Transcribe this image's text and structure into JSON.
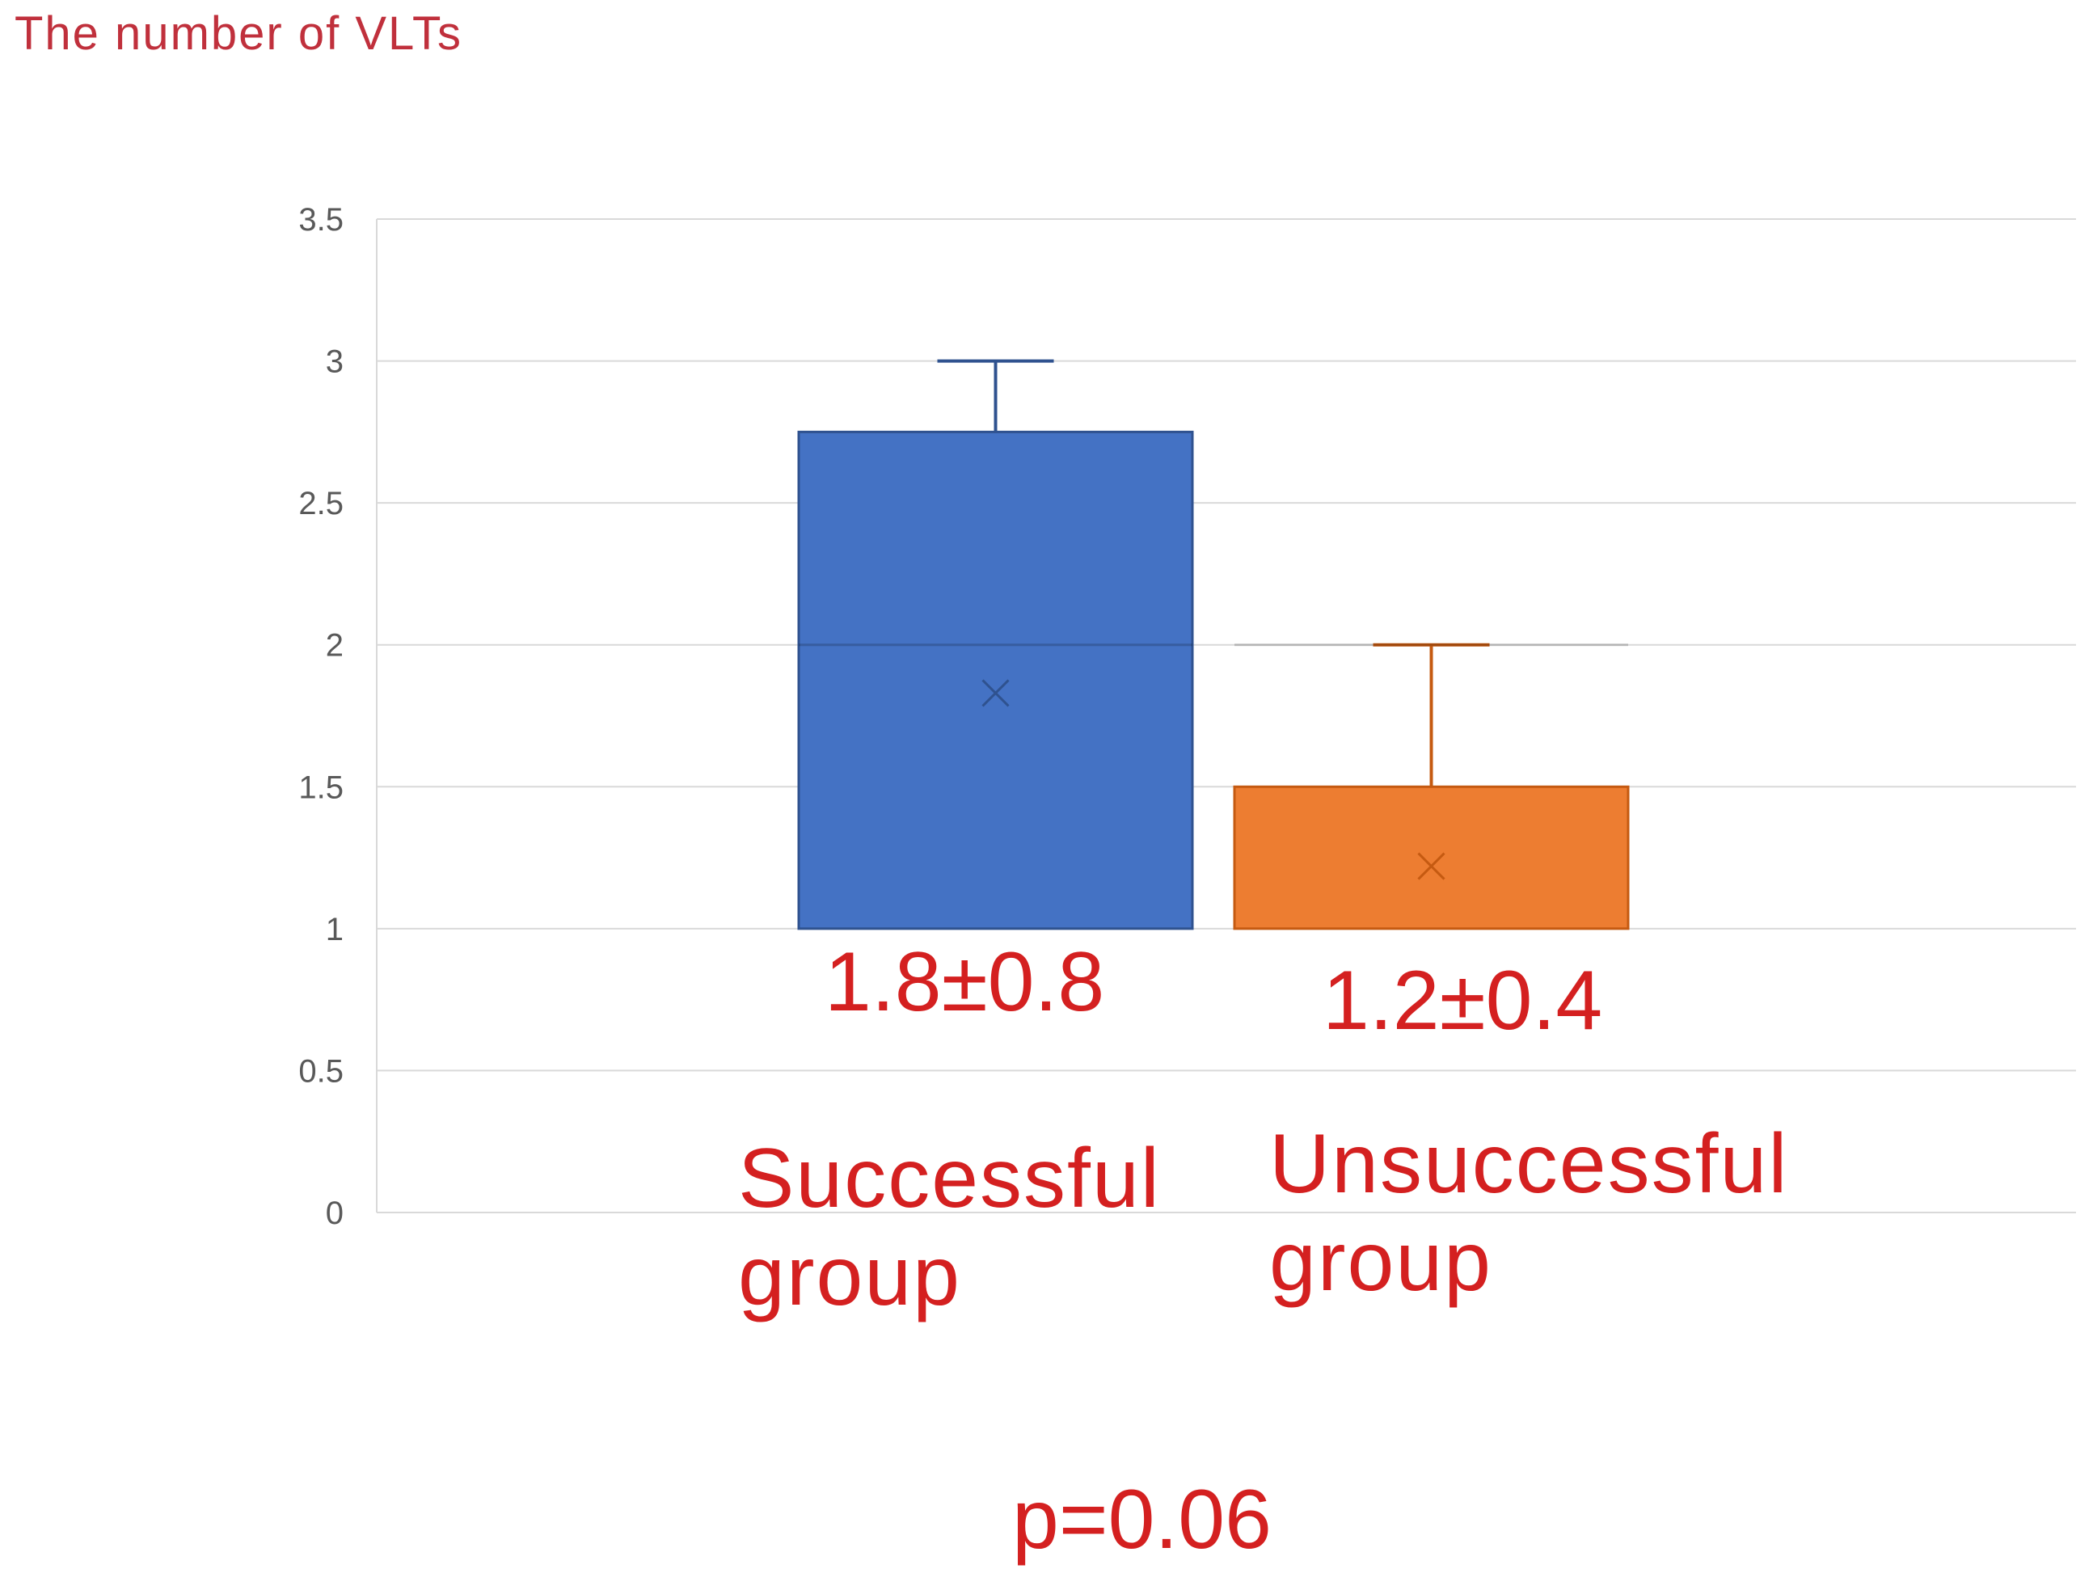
{
  "chart_data": {
    "type": "bar",
    "title": "",
    "ylabel": "The number of VLTs",
    "xlabel": "",
    "ylim": [
      0,
      3.5
    ],
    "yticks": [
      0,
      0.5,
      1,
      1.5,
      2,
      2.5,
      3,
      3.5
    ],
    "y_tick_labels": [
      "0",
      "0.5",
      "1",
      "1.5",
      "2",
      "2.5",
      "3",
      "3.5"
    ],
    "grid": true,
    "legend": "none",
    "categories": [
      "Successful group",
      "Unsuccessful group"
    ],
    "boxes": [
      {
        "category": "Successful group",
        "low": 1.0,
        "high": 2.75,
        "mean": 1.83,
        "whisker_max": 3.0,
        "color": "#4472c4",
        "line_color": "#2f528f"
      },
      {
        "category": "Unsuccessful group",
        "low": 1.0,
        "high": 1.5,
        "mean": 1.22,
        "whisker_max": 2.0,
        "color": "#ed7d31",
        "line_color": "#c55a11"
      }
    ],
    "annotations": {
      "successful_value": "1.8±0.8",
      "unsuccessful_value": "1.2±0.4",
      "successful_label": "Successful\ngroup",
      "unsuccessful_label": "Unsuccessful\ngroup",
      "p_value": "p=0.06"
    }
  }
}
